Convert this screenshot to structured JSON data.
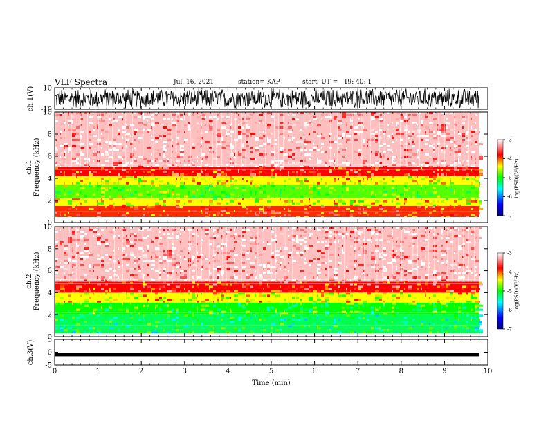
{
  "header": {
    "title": "VLF Spectra",
    "date": "Jul. 16, 2021",
    "station": "station= KAP",
    "start": "start  UT =   19: 40: 1"
  },
  "colors": {
    "spectrogram_scale": [
      "#000080",
      "#0000ff",
      "#00ffff",
      "#00ff00",
      "#ffff00",
      "#ff0000",
      "#ffffff"
    ],
    "waveform": "#000000"
  },
  "chart_data": [
    {
      "type": "line",
      "panel": "ch1-waveform",
      "ylabel": "ch.1(V)",
      "ylim": [
        -10,
        10
      ],
      "yticks": [
        "10",
        "-10"
      ],
      "xlim": [
        0,
        10
      ],
      "note_values": "dense noisy waveform spanning roughly -10 to 10 V over 0–9.8 min"
    },
    {
      "type": "heatmap",
      "panel": "ch1-spectrogram",
      "ylabel": "ch.1\nFrequency (kHz)",
      "ylim": [
        0,
        10
      ],
      "yticks": [
        "0",
        "2",
        "4",
        "6",
        "8",
        "10"
      ],
      "xlim": [
        0,
        10
      ],
      "data_extent_min": 9.8,
      "colorbar": {
        "label": "log(PSD)(V²/Hz)",
        "range": [
          -7,
          -3
        ],
        "ticks": [
          "-3",
          "-4",
          "-5",
          "-6",
          "-7"
        ]
      },
      "bands_khz": [
        {
          "from": 0.5,
          "to": 1.5,
          "level": -3.9
        },
        {
          "from": 1.5,
          "to": 2.2,
          "level": -4.4
        },
        {
          "from": 2.2,
          "to": 3.4,
          "level": -4.8
        },
        {
          "from": 3.4,
          "to": 4.2,
          "level": -4.4
        },
        {
          "from": 4.2,
          "to": 5.0,
          "level": -3.8
        },
        {
          "from": 5.0,
          "to": 10.0,
          "level": -3.2
        }
      ]
    },
    {
      "type": "heatmap",
      "panel": "ch2-spectrogram",
      "ylabel": "ch.2\nFrequency (kHz)",
      "ylim": [
        0,
        10
      ],
      "yticks": [
        "0",
        "2",
        "4",
        "6",
        "8",
        "10"
      ],
      "xlim": [
        0,
        10
      ],
      "data_extent_min": 9.8,
      "colorbar": {
        "label": "log(PSD)(V²/Hz)",
        "range": [
          -7,
          -3
        ],
        "ticks": [
          "-3",
          "-4",
          "-5",
          "-6",
          "-7"
        ]
      },
      "bands_khz": [
        {
          "from": 0.3,
          "to": 2.0,
          "level": -5.2
        },
        {
          "from": 2.0,
          "to": 3.1,
          "level": -5.0
        },
        {
          "from": 3.1,
          "to": 4.0,
          "level": -4.4
        },
        {
          "from": 4.0,
          "to": 5.0,
          "level": -3.8
        },
        {
          "from": 5.0,
          "to": 10.0,
          "level": -3.2
        }
      ]
    },
    {
      "type": "line",
      "panel": "ch3-waveform",
      "ylabel": "ch.3(V)",
      "ylim": [
        -5,
        5
      ],
      "yticks": [
        "5",
        "0",
        "-5"
      ],
      "xlim": [
        0,
        10
      ],
      "xlabel": "Time (min)",
      "xticks": [
        "0",
        "1",
        "2",
        "3",
        "4",
        "5",
        "6",
        "7",
        "8",
        "9",
        "10"
      ],
      "note_values": "thin band near -1 V across 0–9.8 min"
    }
  ]
}
